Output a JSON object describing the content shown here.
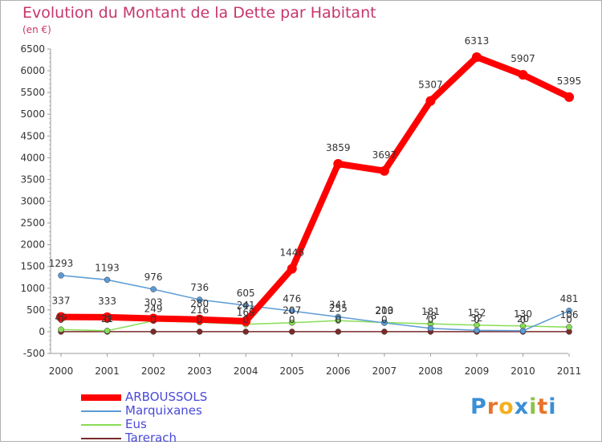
{
  "title": "Evolution du Montant de la Dette par Habitant",
  "unit": "(en €)",
  "logo": "Proxiti",
  "chart_data": {
    "type": "line",
    "x": [
      "2000",
      "2001",
      "2002",
      "2003",
      "2004",
      "2005",
      "2006",
      "2007",
      "2008",
      "2009",
      "2010",
      "2011"
    ],
    "ylim": [
      -500,
      6500
    ],
    "yticks": [
      -500,
      0,
      500,
      1000,
      1500,
      2000,
      2500,
      3000,
      3500,
      4000,
      4500,
      5000,
      5500,
      6000,
      6500
    ],
    "grid": false,
    "legend_position": "bottom-left",
    "series": [
      {
        "name": "ARBOUSSOLS",
        "color": "#ff0000",
        "values": [
          337,
          333,
          303,
          280,
          241,
          1446,
          3859,
          3697,
          5307,
          6313,
          5907,
          5395
        ],
        "labels": [
          "337",
          "333",
          "303",
          "280",
          "241",
          "1446",
          "3859",
          "3697",
          "5307",
          "6313",
          "5907",
          "5395"
        ]
      },
      {
        "name": "Marquixanes",
        "color": "#5b9bd5",
        "values": [
          1293,
          1193,
          976,
          736,
          605,
          476,
          341,
          203,
          78,
          32,
          20,
          481
        ],
        "labels": [
          "1293",
          "1193",
          "976",
          "736",
          "605",
          "476",
          "341",
          "203",
          "78",
          "32",
          "20",
          "481"
        ]
      },
      {
        "name": "Eus",
        "color": "#88dd55",
        "values": [
          49,
          21,
          249,
          216,
          169,
          207,
          255,
          210,
          181,
          152,
          130,
          106
        ],
        "labels": [
          "49",
          "21",
          "249",
          "216",
          "169",
          "207",
          "255",
          "210",
          "181",
          "152",
          "130",
          "106"
        ]
      },
      {
        "name": "Tarerach",
        "color": "#7a2a2a",
        "values": [
          0,
          0,
          0,
          0,
          0,
          0,
          0,
          0,
          0,
          0,
          0,
          0
        ],
        "labels": [
          "0",
          "0",
          "0",
          "0",
          "0",
          "0",
          "0",
          "0",
          "0",
          "0",
          "0",
          "0"
        ]
      }
    ]
  }
}
